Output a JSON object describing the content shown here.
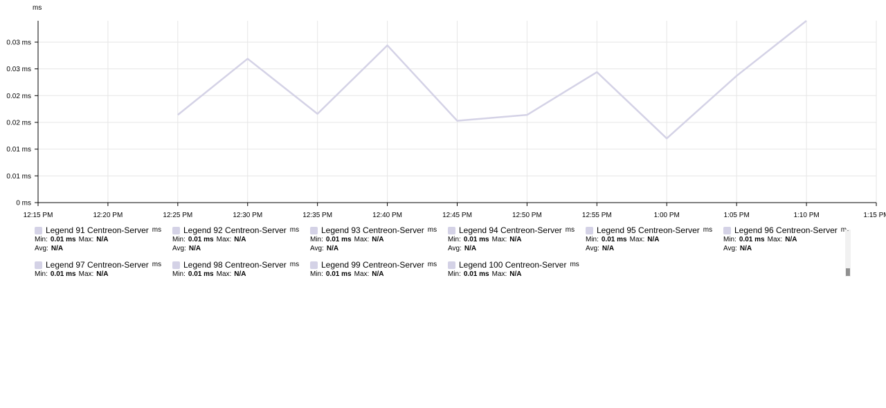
{
  "chart_data": {
    "type": "line",
    "unit_label": "ms",
    "x_ticks": [
      "12:15 PM",
      "12:20 PM",
      "12:25 PM",
      "12:30 PM",
      "12:35 PM",
      "12:40 PM",
      "12:45 PM",
      "12:50 PM",
      "12:55 PM",
      "1:00 PM",
      "1:05 PM",
      "1:10 PM",
      "1:15 PM"
    ],
    "y_ticks": [
      "0 ms",
      "0.01 ms",
      "0.01 ms",
      "0.02 ms",
      "0.02 ms",
      "0.03 ms",
      "0.03 ms"
    ],
    "y_tick_values": [
      0,
      0.005,
      0.01,
      0.015,
      0.02,
      0.025,
      0.03
    ],
    "ylim": [
      0,
      0.034
    ],
    "grid": true,
    "series": [
      {
        "name": "Legend 91 Centreon-Server",
        "color": "#d4d2e6",
        "x": [
          "12:25 PM",
          "12:30 PM",
          "12:35 PM",
          "12:40 PM",
          "12:45 PM",
          "12:50 PM",
          "12:55 PM",
          "1:00 PM",
          "1:05 PM",
          "1:10 PM"
        ],
        "values": [
          0.0164,
          0.0269,
          0.0166,
          0.0294,
          0.0153,
          0.0164,
          0.0244,
          0.012,
          0.0237,
          0.034
        ]
      }
    ]
  },
  "legend": {
    "items": [
      {
        "name": "Legend 91 Centreon-Server",
        "unit": "ms",
        "min_label": "Min:",
        "min": "0.01 ms",
        "max_label": "Max:",
        "max": "N/A",
        "avg_label": "Avg:",
        "avg": "N/A"
      },
      {
        "name": "Legend 92 Centreon-Server",
        "unit": "ms",
        "min_label": "Min:",
        "min": "0.01 ms",
        "max_label": "Max:",
        "max": "N/A",
        "avg_label": "Avg:",
        "avg": "N/A"
      },
      {
        "name": "Legend 93 Centreon-Server",
        "unit": "ms",
        "min_label": "Min:",
        "min": "0.01 ms",
        "max_label": "Max:",
        "max": "N/A",
        "avg_label": "Avg:",
        "avg": "N/A"
      },
      {
        "name": "Legend 94 Centreon-Server",
        "unit": "ms",
        "min_label": "Min:",
        "min": "0.01 ms",
        "max_label": "Max:",
        "max": "N/A",
        "avg_label": "Avg:",
        "avg": "N/A"
      },
      {
        "name": "Legend 95 Centreon-Server",
        "unit": "ms",
        "min_label": "Min:",
        "min": "0.01 ms",
        "max_label": "Max:",
        "max": "N/A",
        "avg_label": "Avg:",
        "avg": "N/A"
      },
      {
        "name": "Legend 96 Centreon-Server",
        "unit": "m",
        "min_label": "Min:",
        "min": "0.01 ms",
        "max_label": "Max:",
        "max": "N/A",
        "avg_label": "Avg:",
        "avg": "N/A"
      },
      {
        "name": "Legend 97 Centreon-Server",
        "unit": "ms",
        "min_label": "Min:",
        "min": "0.01 ms",
        "max_label": "Max:",
        "max": "N/A"
      },
      {
        "name": "Legend 98 Centreon-Server",
        "unit": "ms",
        "min_label": "Min:",
        "min": "0.01 ms",
        "max_label": "Max:",
        "max": "N/A"
      },
      {
        "name": "Legend 99 Centreon-Server",
        "unit": "ms",
        "min_label": "Min:",
        "min": "0.01 ms",
        "max_label": "Max:",
        "max": "N/A"
      },
      {
        "name": "Legend 100 Centreon-Server",
        "unit": "ms",
        "min_label": "Min:",
        "min": "0.01 ms",
        "max_label": "Max:",
        "max": "N/A"
      }
    ]
  }
}
